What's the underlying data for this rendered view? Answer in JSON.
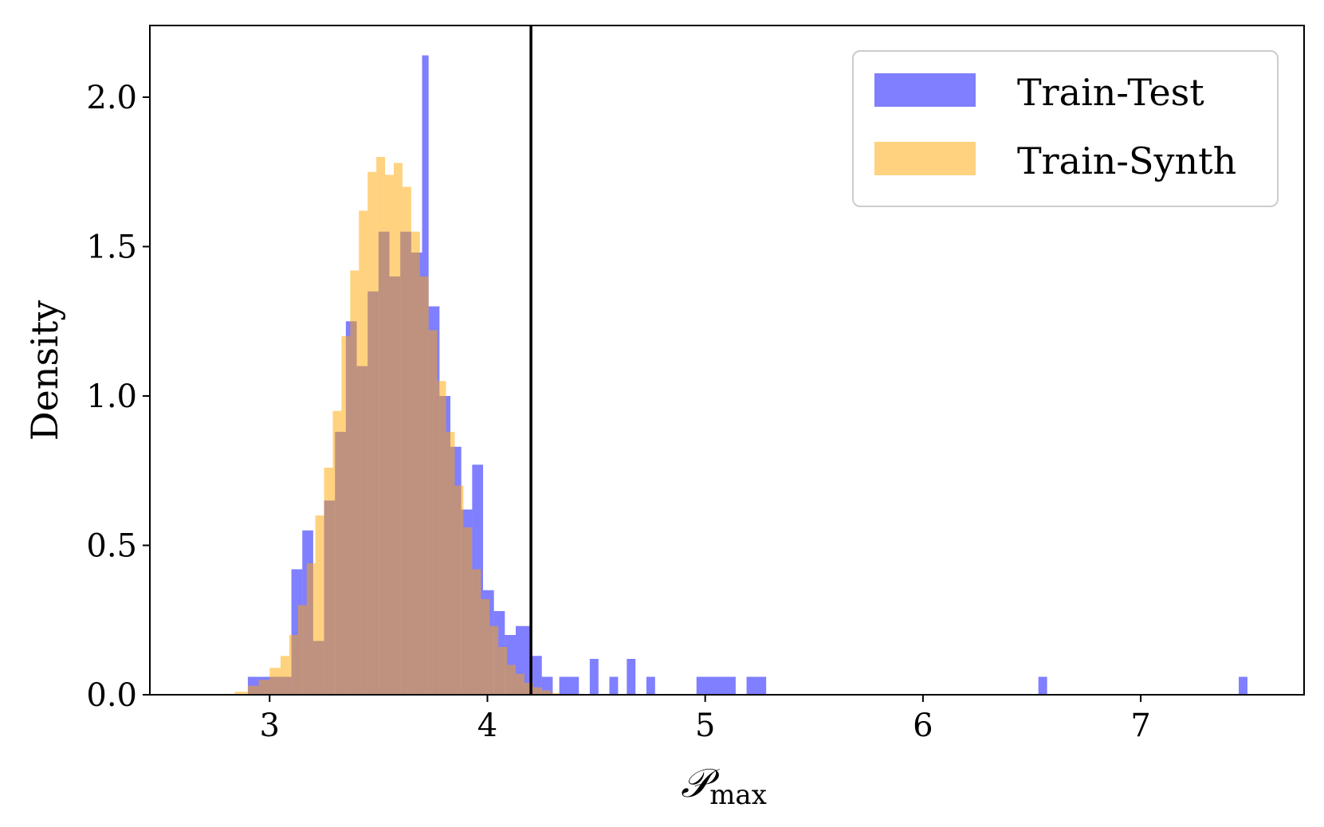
{
  "chart_data": {
    "type": "histogram",
    "xlabel": "𝒫",
    "xlabel_sub": "max",
    "ylabel": "Density",
    "xlim": [
      2.45,
      7.75
    ],
    "ylim": [
      0.0,
      2.24
    ],
    "xticks": [
      3,
      4,
      5,
      6,
      7
    ],
    "xtick_labels": [
      "3",
      "4",
      "5",
      "6",
      "7"
    ],
    "yticks": [
      0.0,
      0.5,
      1.0,
      1.5,
      2.0
    ],
    "ytick_labels": [
      "0.0",
      "0.5",
      "1.0",
      "1.5",
      "2.0"
    ],
    "grid": false,
    "legend_position": "top-right",
    "vline_x": 4.2,
    "series": [
      {
        "name": "Train-Test",
        "color": "#0000ff",
        "alpha": 0.5,
        "bins": [
          {
            "x0": 2.9,
            "x1": 3.1,
            "y": 0.06
          },
          {
            "x0": 3.1,
            "x1": 3.15,
            "y": 0.42
          },
          {
            "x0": 3.15,
            "x1": 3.2,
            "y": 0.55
          },
          {
            "x0": 3.2,
            "x1": 3.25,
            "y": 0.18
          },
          {
            "x0": 3.25,
            "x1": 3.3,
            "y": 0.65
          },
          {
            "x0": 3.3,
            "x1": 3.35,
            "y": 0.88
          },
          {
            "x0": 3.35,
            "x1": 3.4,
            "y": 1.25
          },
          {
            "x0": 3.4,
            "x1": 3.45,
            "y": 1.1
          },
          {
            "x0": 3.45,
            "x1": 3.5,
            "y": 1.35
          },
          {
            "x0": 3.5,
            "x1": 3.55,
            "y": 1.55
          },
          {
            "x0": 3.55,
            "x1": 3.6,
            "y": 1.4
          },
          {
            "x0": 3.6,
            "x1": 3.65,
            "y": 1.55
          },
          {
            "x0": 3.65,
            "x1": 3.7,
            "y": 1.48
          },
          {
            "x0": 3.7,
            "x1": 3.73,
            "y": 2.14
          },
          {
            "x0": 3.73,
            "x1": 3.78,
            "y": 1.3
          },
          {
            "x0": 3.78,
            "x1": 3.83,
            "y": 1.0
          },
          {
            "x0": 3.83,
            "x1": 3.88,
            "y": 0.83
          },
          {
            "x0": 3.88,
            "x1": 3.93,
            "y": 0.62
          },
          {
            "x0": 3.93,
            "x1": 3.98,
            "y": 0.77
          },
          {
            "x0": 3.98,
            "x1": 4.03,
            "y": 0.35
          },
          {
            "x0": 4.03,
            "x1": 4.08,
            "y": 0.28
          },
          {
            "x0": 4.08,
            "x1": 4.13,
            "y": 0.2
          },
          {
            "x0": 4.13,
            "x1": 4.2,
            "y": 0.23
          },
          {
            "x0": 4.2,
            "x1": 4.25,
            "y": 0.13
          },
          {
            "x0": 4.25,
            "x1": 4.3,
            "y": 0.06
          },
          {
            "x0": 4.33,
            "x1": 4.42,
            "y": 0.06
          },
          {
            "x0": 4.47,
            "x1": 4.51,
            "y": 0.12
          },
          {
            "x0": 4.56,
            "x1": 4.6,
            "y": 0.06
          },
          {
            "x0": 4.64,
            "x1": 4.68,
            "y": 0.12
          },
          {
            "x0": 4.73,
            "x1": 4.77,
            "y": 0.06
          },
          {
            "x0": 4.96,
            "x1": 5.14,
            "y": 0.06
          },
          {
            "x0": 5.19,
            "x1": 5.28,
            "y": 0.06
          },
          {
            "x0": 6.53,
            "x1": 6.57,
            "y": 0.06
          },
          {
            "x0": 7.45,
            "x1": 7.49,
            "y": 0.06
          }
        ]
      },
      {
        "name": "Train-Synth",
        "color": "#ffa500",
        "alpha": 0.5,
        "bins": [
          {
            "x0": 2.78,
            "x1": 2.84,
            "y": 0.003
          },
          {
            "x0": 2.84,
            "x1": 2.9,
            "y": 0.01
          },
          {
            "x0": 2.9,
            "x1": 2.95,
            "y": 0.03
          },
          {
            "x0": 2.95,
            "x1": 3.0,
            "y": 0.05
          },
          {
            "x0": 3.0,
            "x1": 3.05,
            "y": 0.09
          },
          {
            "x0": 3.05,
            "x1": 3.09,
            "y": 0.13
          },
          {
            "x0": 3.09,
            "x1": 3.13,
            "y": 0.2
          },
          {
            "x0": 3.13,
            "x1": 3.17,
            "y": 0.3
          },
          {
            "x0": 3.17,
            "x1": 3.21,
            "y": 0.44
          },
          {
            "x0": 3.21,
            "x1": 3.25,
            "y": 0.6
          },
          {
            "x0": 3.25,
            "x1": 3.29,
            "y": 0.76
          },
          {
            "x0": 3.29,
            "x1": 3.33,
            "y": 0.95
          },
          {
            "x0": 3.33,
            "x1": 3.37,
            "y": 1.2
          },
          {
            "x0": 3.37,
            "x1": 3.41,
            "y": 1.42
          },
          {
            "x0": 3.41,
            "x1": 3.45,
            "y": 1.62
          },
          {
            "x0": 3.45,
            "x1": 3.49,
            "y": 1.75
          },
          {
            "x0": 3.49,
            "x1": 3.53,
            "y": 1.8
          },
          {
            "x0": 3.53,
            "x1": 3.57,
            "y": 1.74
          },
          {
            "x0": 3.57,
            "x1": 3.61,
            "y": 1.78
          },
          {
            "x0": 3.61,
            "x1": 3.65,
            "y": 1.7
          },
          {
            "x0": 3.65,
            "x1": 3.69,
            "y": 1.55
          },
          {
            "x0": 3.69,
            "x1": 3.73,
            "y": 1.4
          },
          {
            "x0": 3.73,
            "x1": 3.77,
            "y": 1.22
          },
          {
            "x0": 3.77,
            "x1": 3.81,
            "y": 1.05
          },
          {
            "x0": 3.81,
            "x1": 3.85,
            "y": 0.88
          },
          {
            "x0": 3.85,
            "x1": 3.89,
            "y": 0.7
          },
          {
            "x0": 3.89,
            "x1": 3.93,
            "y": 0.56
          },
          {
            "x0": 3.93,
            "x1": 3.97,
            "y": 0.42
          },
          {
            "x0": 3.97,
            "x1": 4.01,
            "y": 0.32
          },
          {
            "x0": 4.01,
            "x1": 4.05,
            "y": 0.23
          },
          {
            "x0": 4.05,
            "x1": 4.09,
            "y": 0.16
          },
          {
            "x0": 4.09,
            "x1": 4.13,
            "y": 0.1
          },
          {
            "x0": 4.13,
            "x1": 4.17,
            "y": 0.07
          },
          {
            "x0": 4.17,
            "x1": 4.21,
            "y": 0.04
          },
          {
            "x0": 4.21,
            "x1": 4.25,
            "y": 0.025
          },
          {
            "x0": 4.25,
            "x1": 4.29,
            "y": 0.015
          },
          {
            "x0": 4.29,
            "x1": 4.33,
            "y": 0.006
          }
        ]
      }
    ]
  }
}
